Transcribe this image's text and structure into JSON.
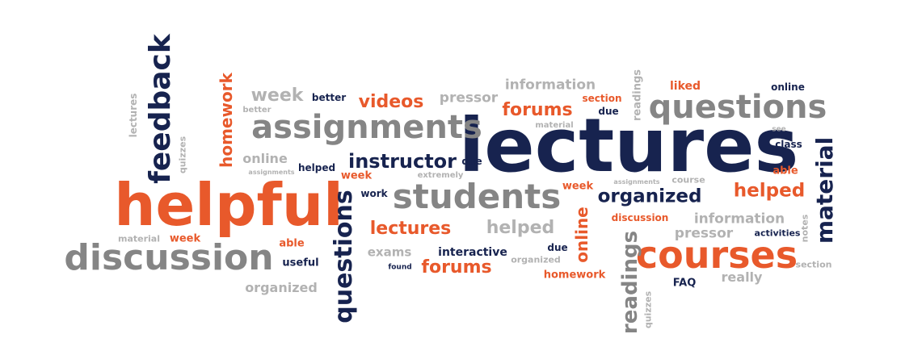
{
  "colors": {
    "orange": "#e8592b",
    "navy": "#17234f",
    "gray": "#858585",
    "light_gray": "#b2b2b2"
  },
  "words": [
    {
      "text": "lectures"
    },
    {
      "text": "helpful"
    },
    {
      "text": "assignments"
    },
    {
      "text": "questions"
    },
    {
      "text": "students"
    },
    {
      "text": "courses"
    },
    {
      "text": "discussion"
    },
    {
      "text": "feedback"
    },
    {
      "text": "questions"
    },
    {
      "text": "material"
    },
    {
      "text": "readings"
    },
    {
      "text": "homework"
    },
    {
      "text": "online"
    },
    {
      "text": "instructor"
    },
    {
      "text": "organized"
    },
    {
      "text": "helped"
    },
    {
      "text": "forums"
    },
    {
      "text": "videos"
    },
    {
      "text": "lectures"
    },
    {
      "text": "forums"
    },
    {
      "text": "helped"
    },
    {
      "text": "week"
    },
    {
      "text": "pressor"
    },
    {
      "text": "information"
    },
    {
      "text": "information"
    },
    {
      "text": "pressor"
    },
    {
      "text": "online"
    },
    {
      "text": "organized"
    },
    {
      "text": "exams"
    },
    {
      "text": "interactive"
    },
    {
      "text": "really"
    },
    {
      "text": "week"
    },
    {
      "text": "week"
    },
    {
      "text": "week"
    },
    {
      "text": "material"
    },
    {
      "text": "able"
    },
    {
      "text": "useful"
    },
    {
      "text": "better"
    },
    {
      "text": "better"
    },
    {
      "text": "helped"
    },
    {
      "text": "assignments"
    },
    {
      "text": "due"
    },
    {
      "text": "extremely"
    },
    {
      "text": "work"
    },
    {
      "text": "section"
    },
    {
      "text": "due"
    },
    {
      "text": "material"
    },
    {
      "text": "liked"
    },
    {
      "text": "online"
    },
    {
      "text": "see"
    },
    {
      "text": "class"
    },
    {
      "text": "able"
    },
    {
      "text": "assignments"
    },
    {
      "text": "course"
    },
    {
      "text": "discussion"
    },
    {
      "text": "activities"
    },
    {
      "text": "FAQ"
    },
    {
      "text": "homework"
    },
    {
      "text": "due"
    },
    {
      "text": "found"
    },
    {
      "text": "organized"
    },
    {
      "text": "section"
    },
    {
      "text": "notes"
    },
    {
      "text": "lectures"
    },
    {
      "text": "quizzes"
    },
    {
      "text": "readings"
    },
    {
      "text": "quizzes"
    }
  ]
}
